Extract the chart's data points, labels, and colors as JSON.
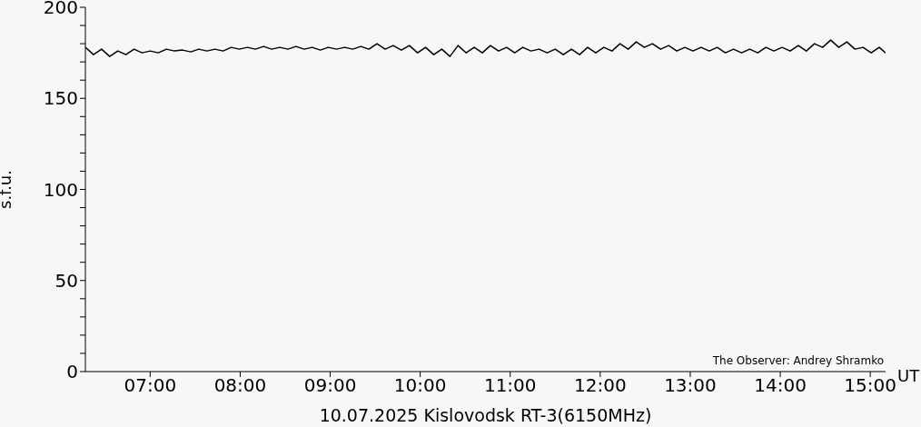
{
  "chart_data": {
    "type": "line",
    "xlabel": "UT",
    "ylabel": "s.f.u.",
    "annotations": [
      "10.07.2025 Kislovodsk RT-3(6150MHz)",
      "The Observer: Andrey Shramko"
    ],
    "x": [
      6.28,
      6.37,
      6.46,
      6.55,
      6.64,
      6.73,
      6.82,
      6.91,
      7.0,
      7.09,
      7.18,
      7.27,
      7.36,
      7.45,
      7.54,
      7.63,
      7.72,
      7.81,
      7.9,
      7.99,
      8.08,
      8.17,
      8.26,
      8.35,
      8.44,
      8.53,
      8.62,
      8.71,
      8.8,
      8.89,
      8.98,
      9.07,
      9.16,
      9.25,
      9.34,
      9.43,
      9.52,
      9.61,
      9.7,
      9.79,
      9.88,
      9.97,
      10.06,
      10.15,
      10.24,
      10.33,
      10.42,
      10.51,
      10.6,
      10.69,
      10.78,
      10.87,
      10.96,
      11.05,
      11.14,
      11.23,
      11.32,
      11.41,
      11.5,
      11.59,
      11.68,
      11.77,
      11.86,
      11.95,
      12.04,
      12.13,
      12.22,
      12.31,
      12.4,
      12.49,
      12.58,
      12.67,
      12.76,
      12.85,
      12.94,
      13.03,
      13.12,
      13.21,
      13.3,
      13.39,
      13.48,
      13.57,
      13.66,
      13.75,
      13.84,
      13.93,
      14.02,
      14.11,
      14.2,
      14.29,
      14.38,
      14.47,
      14.56,
      14.65,
      14.74,
      14.83,
      14.92,
      15.01,
      15.1,
      15.17
    ],
    "series": [
      {
        "color": "#000000",
        "values": [
          178,
          174,
          177,
          173,
          176,
          174,
          177,
          175,
          176,
          175,
          177,
          176,
          176.5,
          175.5,
          177,
          176,
          177,
          176,
          178,
          177,
          178,
          177,
          178.5,
          177,
          178,
          177,
          178.5,
          177,
          178,
          176.5,
          178,
          177,
          178,
          177,
          178.5,
          177,
          180,
          177,
          179,
          176.5,
          179,
          175,
          178,
          174,
          177,
          173,
          179,
          175,
          178,
          175,
          179,
          176,
          178,
          175,
          178,
          176,
          177,
          175,
          177,
          174,
          177,
          174,
          178,
          175,
          178,
          176,
          180,
          177,
          181,
          178,
          180,
          177,
          179,
          176,
          178,
          176,
          178,
          176,
          178,
          175,
          177,
          175,
          177,
          175,
          178,
          176,
          178,
          176,
          179,
          176,
          180,
          178,
          182,
          178,
          181,
          177,
          178,
          175,
          178,
          175
        ]
      }
    ],
    "xlim": [
      6.28,
      15.17
    ],
    "xticks": [
      {
        "value": 7,
        "label": "07:00"
      },
      {
        "value": 8,
        "label": "08:00"
      },
      {
        "value": 9,
        "label": "09:00"
      },
      {
        "value": 10,
        "label": "10:00"
      },
      {
        "value": 11,
        "label": "11:00"
      },
      {
        "value": 12,
        "label": "12:00"
      },
      {
        "value": 13,
        "label": "13:00"
      },
      {
        "value": 14,
        "label": "14:00"
      },
      {
        "value": 15,
        "label": "15:00"
      }
    ],
    "ylim": [
      0,
      200
    ],
    "yticks": [
      0,
      {
        "value": 10,
        "label": null
      },
      {
        "value": 20,
        "label": null
      },
      {
        "value": 30,
        "label": null
      },
      {
        "value": 40,
        "label": null
      },
      50,
      {
        "value": 60,
        "label": null
      },
      {
        "value": 70,
        "label": null
      },
      {
        "value": 80,
        "label": null
      },
      {
        "value": 90,
        "label": null
      },
      100,
      {
        "value": 110,
        "label": null
      },
      {
        "value": 120,
        "label": null
      },
      {
        "value": 130,
        "label": null
      },
      {
        "value": 140,
        "label": null
      },
      150,
      {
        "value": 160,
        "label": null
      },
      {
        "value": 170,
        "label": null
      },
      {
        "value": 180,
        "label": null
      },
      {
        "value": 190,
        "label": null
      },
      200
    ],
    "grid": false,
    "legend": false,
    "marker": "none",
    "line_style": "solid"
  }
}
